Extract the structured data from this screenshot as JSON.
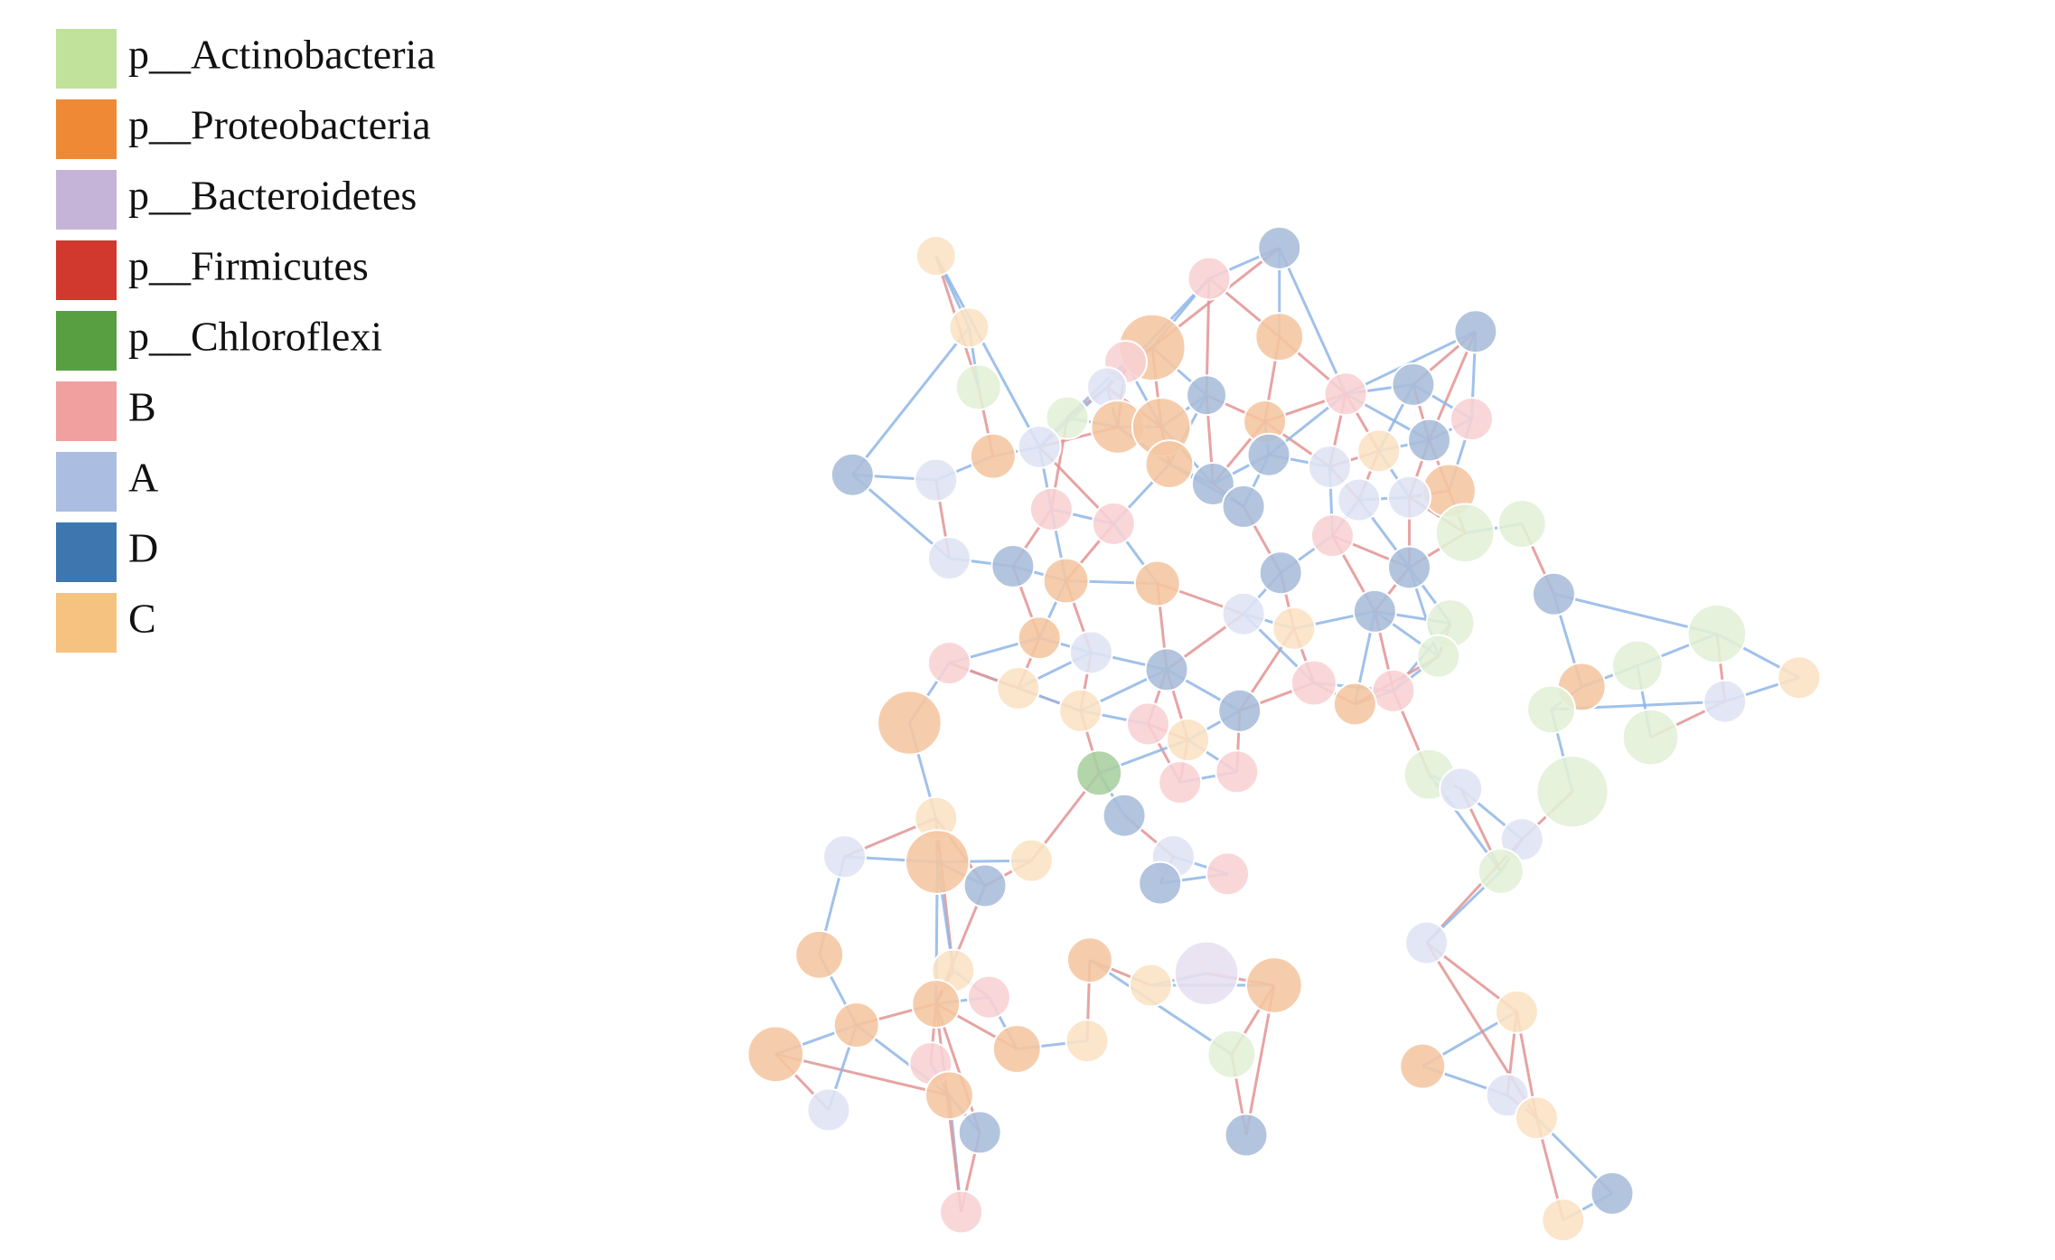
{
  "legend": {
    "items": [
      {
        "label": "p__Actinobacteria",
        "color": "#c0e29a"
      },
      {
        "label": "p__Proteobacteria",
        "color": "#f08936"
      },
      {
        "label": "p__Bacteroidetes",
        "color": "#c6b4d8"
      },
      {
        "label": "p__Firmicutes",
        "color": "#d2392e"
      },
      {
        "label": "p__Chloroflexi",
        "color": "#589f42"
      },
      {
        "label": "B",
        "color": "#f0a09f"
      },
      {
        "label": "A",
        "color": "#abbde0"
      },
      {
        "label": "D",
        "color": "#3e77b0"
      },
      {
        "label": "C",
        "color": "#f5c27f"
      }
    ]
  }
}
